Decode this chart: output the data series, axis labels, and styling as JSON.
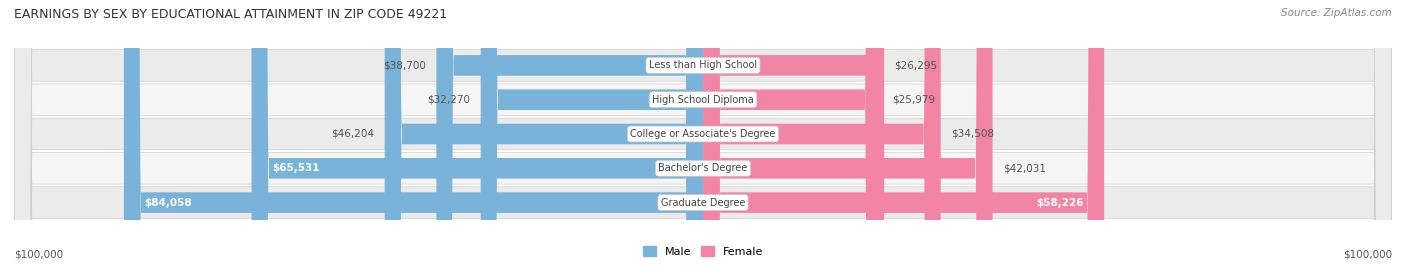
{
  "title": "EARNINGS BY SEX BY EDUCATIONAL ATTAINMENT IN ZIP CODE 49221",
  "source": "Source: ZipAtlas.com",
  "categories": [
    "Less than High School",
    "High School Diploma",
    "College or Associate's Degree",
    "Bachelor's Degree",
    "Graduate Degree"
  ],
  "male_values": [
    38700,
    32270,
    46204,
    65531,
    84058
  ],
  "female_values": [
    26295,
    25979,
    34508,
    42031,
    58226
  ],
  "male_color": "#7ab3d9",
  "female_color": "#f285a5",
  "row_bg_color": "#ebebeb",
  "row_bg_color2": "#f5f5f5",
  "max_value": 100000,
  "x_label_left": "$100,000",
  "x_label_right": "$100,000",
  "title_fontsize": 9.0,
  "source_fontsize": 7.5,
  "bar_label_fontsize": 7.5,
  "category_fontsize": 7.0,
  "axis_label_fontsize": 7.5
}
